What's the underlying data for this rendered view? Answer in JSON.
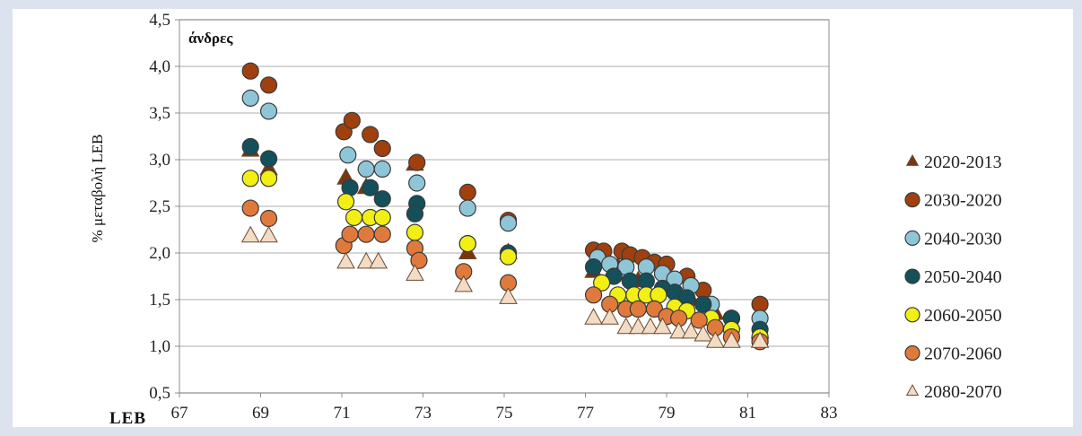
{
  "chart_data": {
    "type": "scatter",
    "title": "άνδρες",
    "xlabel": "LEB",
    "ylabel": "% μεταβολή LEB",
    "xlim": [
      67,
      83
    ],
    "ylim": [
      0.5,
      4.5
    ],
    "x_ticks": [
      "67",
      "69",
      "71",
      "73",
      "75",
      "77",
      "79",
      "81",
      "83"
    ],
    "y_ticks": [
      "0,5",
      "1,0",
      "1,5",
      "2,0",
      "2,5",
      "3,0",
      "3,5",
      "4,0",
      "4,5"
    ],
    "grid": "horizontal",
    "legend_position": "right",
    "series": [
      {
        "name": "2020-2013",
        "marker": "triangle",
        "color": "#7a3410",
        "points": [
          [
            68.75,
            3.1
          ],
          [
            69.2,
            2.9
          ],
          [
            71.1,
            2.8
          ],
          [
            71.6,
            2.7
          ],
          [
            72.8,
            2.95
          ],
          [
            74.1,
            2.0
          ],
          [
            75.1,
            2.0
          ],
          [
            77.2,
            1.8
          ],
          [
            77.8,
            1.85
          ],
          [
            78.3,
            1.7
          ],
          [
            79.0,
            1.65
          ],
          [
            79.6,
            1.5
          ],
          [
            80.2,
            1.35
          ],
          [
            80.6,
            1.25
          ],
          [
            81.3,
            1.15
          ]
        ]
      },
      {
        "name": "2030-2020",
        "marker": "circle",
        "color": "#a0400e",
        "points": [
          [
            68.75,
            3.95
          ],
          [
            69.2,
            3.8
          ],
          [
            71.05,
            3.3
          ],
          [
            71.25,
            3.42
          ],
          [
            71.7,
            3.27
          ],
          [
            72.0,
            3.12
          ],
          [
            72.85,
            2.97
          ],
          [
            74.1,
            2.65
          ],
          [
            75.1,
            2.35
          ],
          [
            77.2,
            2.03
          ],
          [
            77.45,
            2.02
          ],
          [
            77.9,
            2.02
          ],
          [
            78.1,
            1.98
          ],
          [
            78.4,
            1.95
          ],
          [
            78.7,
            1.9
          ],
          [
            79.0,
            1.88
          ],
          [
            79.5,
            1.75
          ],
          [
            79.9,
            1.6
          ],
          [
            80.6,
            1.3
          ],
          [
            81.3,
            1.45
          ]
        ]
      },
      {
        "name": "2040-2030",
        "marker": "circle",
        "color": "#8ec6d8",
        "points": [
          [
            68.75,
            3.66
          ],
          [
            69.2,
            3.52
          ],
          [
            71.15,
            3.05
          ],
          [
            71.6,
            2.9
          ],
          [
            72.0,
            2.9
          ],
          [
            72.85,
            2.75
          ],
          [
            74.1,
            2.48
          ],
          [
            75.1,
            2.32
          ],
          [
            77.3,
            1.95
          ],
          [
            77.6,
            1.88
          ],
          [
            78.0,
            1.85
          ],
          [
            78.5,
            1.85
          ],
          [
            78.9,
            1.78
          ],
          [
            79.2,
            1.72
          ],
          [
            79.6,
            1.65
          ],
          [
            80.1,
            1.45
          ],
          [
            80.6,
            1.3
          ],
          [
            81.3,
            1.3
          ]
        ]
      },
      {
        "name": "2050-2040",
        "marker": "circle",
        "color": "#14505a",
        "points": [
          [
            68.75,
            3.14
          ],
          [
            69.2,
            3.01
          ],
          [
            71.2,
            2.7
          ],
          [
            71.7,
            2.7
          ],
          [
            72.0,
            2.58
          ],
          [
            72.85,
            2.53
          ],
          [
            72.8,
            2.42
          ],
          [
            74.1,
            2.1
          ],
          [
            75.1,
            2.0
          ],
          [
            77.2,
            1.85
          ],
          [
            77.7,
            1.75
          ],
          [
            78.1,
            1.7
          ],
          [
            78.5,
            1.7
          ],
          [
            78.9,
            1.62
          ],
          [
            79.2,
            1.58
          ],
          [
            79.5,
            1.52
          ],
          [
            79.9,
            1.45
          ],
          [
            80.6,
            1.3
          ],
          [
            81.3,
            1.18
          ]
        ]
      },
      {
        "name": "2060-2050",
        "marker": "circle",
        "color": "#f2ef14",
        "points": [
          [
            68.75,
            2.8
          ],
          [
            69.2,
            2.8
          ],
          [
            71.1,
            2.55
          ],
          [
            71.3,
            2.38
          ],
          [
            71.7,
            2.38
          ],
          [
            72.0,
            2.38
          ],
          [
            72.8,
            2.22
          ],
          [
            74.1,
            2.1
          ],
          [
            75.1,
            1.96
          ],
          [
            77.4,
            1.68
          ],
          [
            77.8,
            1.55
          ],
          [
            78.2,
            1.55
          ],
          [
            78.5,
            1.55
          ],
          [
            78.8,
            1.55
          ],
          [
            79.2,
            1.42
          ],
          [
            79.5,
            1.38
          ],
          [
            80.1,
            1.3
          ],
          [
            80.6,
            1.18
          ],
          [
            81.3,
            1.1
          ]
        ]
      },
      {
        "name": "2070-2060",
        "marker": "circle",
        "color": "#e07a3c",
        "points": [
          [
            68.75,
            2.48
          ],
          [
            69.2,
            2.37
          ],
          [
            71.05,
            2.08
          ],
          [
            71.2,
            2.2
          ],
          [
            71.6,
            2.2
          ],
          [
            72.0,
            2.2
          ],
          [
            72.8,
            2.05
          ],
          [
            72.9,
            1.92
          ],
          [
            74.0,
            1.8
          ],
          [
            75.1,
            1.68
          ],
          [
            77.2,
            1.55
          ],
          [
            77.6,
            1.45
          ],
          [
            78.0,
            1.4
          ],
          [
            78.3,
            1.4
          ],
          [
            78.7,
            1.4
          ],
          [
            79.0,
            1.32
          ],
          [
            79.3,
            1.3
          ],
          [
            79.8,
            1.28
          ],
          [
            80.2,
            1.2
          ],
          [
            80.6,
            1.1
          ],
          [
            81.3,
            1.05
          ]
        ]
      },
      {
        "name": "2080-2070",
        "marker": "triangle",
        "color": "#f2dcc6",
        "points": [
          [
            68.75,
            2.18
          ],
          [
            69.2,
            2.18
          ],
          [
            71.1,
            1.9
          ],
          [
            71.6,
            1.9
          ],
          [
            71.9,
            1.9
          ],
          [
            72.8,
            1.77
          ],
          [
            74.0,
            1.65
          ],
          [
            75.1,
            1.52
          ],
          [
            77.2,
            1.3
          ],
          [
            77.6,
            1.3
          ],
          [
            78.0,
            1.2
          ],
          [
            78.3,
            1.2
          ],
          [
            78.6,
            1.2
          ],
          [
            78.9,
            1.2
          ],
          [
            79.3,
            1.15
          ],
          [
            79.6,
            1.15
          ],
          [
            79.9,
            1.12
          ],
          [
            80.2,
            1.05
          ],
          [
            80.6,
            1.05
          ],
          [
            81.3,
            1.05
          ]
        ]
      }
    ]
  }
}
